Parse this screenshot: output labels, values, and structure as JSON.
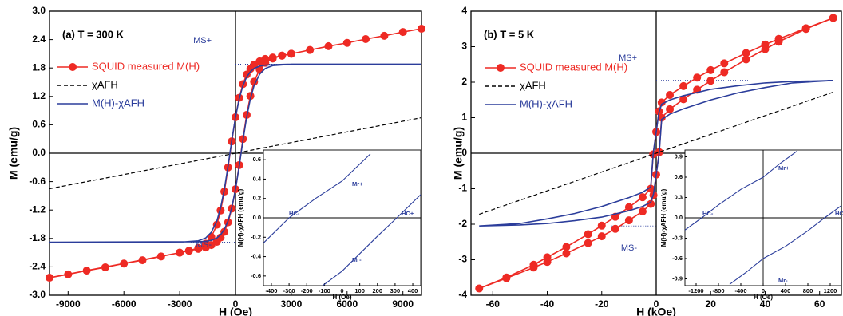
{
  "chart_data": [
    {
      "type": "line",
      "title": "(a) T = 300 K",
      "xlabel": "H (Oe)",
      "ylabel": "M (emu/g)",
      "xlim": [
        -10000,
        10000
      ],
      "ylim": [
        -3,
        3
      ],
      "xticks": [
        -9000,
        -6000,
        -3000,
        0,
        3000,
        6000,
        9000
      ],
      "yticks": [
        {
          "value": -3,
          "label": "-3.0"
        },
        -2.4,
        -1.8,
        -1.2,
        -0.6,
        {
          "value": 0,
          "label": "0.0"
        },
        0.6,
        1.2,
        1.8,
        2.4,
        {
          "value": 3,
          "label": "3.0"
        }
      ],
      "series": [
        {
          "name": "SQUID measured M(H)",
          "color": "#ee2a24",
          "marker": "circle",
          "x": [
            10000,
            9000,
            8000,
            7000,
            6000,
            5000,
            4000,
            3000,
            2500,
            2000,
            1600,
            1300,
            1000,
            800,
            600,
            400,
            200,
            0,
            -200,
            -400,
            -600,
            -800,
            -1000,
            -1300,
            -1600,
            -2000,
            -2500,
            -3000,
            -4000,
            -5000,
            -6000,
            -7000,
            -8000,
            -9000,
            -10000,
            -3000,
            -2500,
            -2000,
            -1600,
            -1300,
            -1000,
            -800,
            -600,
            -400,
            -200,
            0,
            200,
            400,
            600,
            800,
            1000,
            1300,
            1600,
            2000,
            2500,
            3000
          ],
          "values": [
            2.63,
            2.56,
            2.48,
            2.41,
            2.33,
            2.26,
            2.18,
            2.1,
            2.06,
            2.02,
            1.99,
            1.94,
            1.87,
            1.78,
            1.66,
            1.46,
            1.17,
            0.76,
            0.25,
            -0.3,
            -0.81,
            -1.21,
            -1.51,
            -1.77,
            -1.91,
            -2.0,
            -2.06,
            -2.1,
            -2.18,
            -2.26,
            -2.33,
            -2.41,
            -2.48,
            -2.56,
            -2.63,
            -2.1,
            -2.06,
            -2.02,
            -1.99,
            -1.94,
            -1.87,
            -1.78,
            -1.66,
            -1.46,
            -1.17,
            -0.76,
            -0.25,
            0.3,
            0.81,
            1.21,
            1.51,
            1.77,
            1.91,
            2.0,
            2.06,
            2.1
          ]
        },
        {
          "name": "χAFH",
          "color": "#000000",
          "dash": true,
          "x": [
            -10000,
            10000
          ],
          "values": [
            -0.75,
            0.75
          ]
        },
        {
          "name": "M(H)-χAFH",
          "color": "#2b3d9b",
          "x": [
            10000,
            3000,
            2000,
            1600,
            1300,
            1000,
            800,
            600,
            400,
            200,
            0,
            -200,
            -400,
            -600,
            -800,
            -1000,
            -1300,
            -1600,
            -2000,
            -3000,
            -10000,
            -2000,
            -1600,
            -1300,
            -1000,
            -800,
            -600,
            -400,
            -200,
            0,
            200,
            400,
            600,
            800,
            1000,
            1300,
            1600,
            2000,
            3000,
            10000
          ],
          "values": [
            1.88,
            1.88,
            1.87,
            1.86,
            1.84,
            1.79,
            1.72,
            1.61,
            1.43,
            1.15,
            0.76,
            0.27,
            -0.27,
            -0.76,
            -1.15,
            -1.43,
            -1.67,
            -1.79,
            -1.85,
            -1.88,
            -1.88,
            -1.87,
            -1.86,
            -1.84,
            -1.79,
            -1.72,
            -1.61,
            -1.43,
            -1.15,
            -0.76,
            -0.27,
            0.27,
            0.76,
            1.15,
            1.43,
            1.67,
            1.79,
            1.85,
            1.88,
            1.88
          ]
        }
      ],
      "annotations": [
        "MS+",
        "MS-"
      ]
    },
    {
      "type": "line",
      "xlabel": "H (Oe)",
      "ylabel": "M(H)-χAFH (emu/g)",
      "xlim": [
        -445,
        445
      ],
      "ylim": [
        -0.7,
        0.7
      ],
      "xticks": [
        -400,
        -300,
        -200,
        -100,
        0,
        100,
        200,
        300,
        400
      ],
      "yticks": [
        -0.6,
        -0.4,
        -0.2,
        {
          "value": 0,
          "label": "0.0"
        },
        0.2,
        0.4,
        0.6
      ],
      "series": [
        {
          "color": "#2b3d9b",
          "x": [
            -445,
            -300,
            -150,
            0,
            80,
            160
          ],
          "values": [
            -0.26,
            0,
            0.2,
            0.38,
            0.52,
            0.66
          ]
        },
        {
          "color": "#2b3d9b",
          "x": [
            -110,
            0,
            100,
            200,
            310,
            445
          ],
          "values": [
            -0.7,
            -0.55,
            -0.37,
            -0.19,
            0,
            0.24
          ]
        }
      ],
      "annotations": [
        "Mr+",
        "Mr-",
        "HC-",
        "HC+"
      ]
    },
    {
      "type": "line",
      "title": "(b) T = 5 K",
      "xlabel": "H (kOe)",
      "ylabel": "M (emu/g)",
      "xlim": [
        -68,
        68
      ],
      "ylim": [
        -4,
        4
      ],
      "xticks": [
        -60,
        -40,
        -20,
        0,
        20,
        40,
        60
      ],
      "yticks": [
        -4,
        -3,
        -2,
        -1,
        0,
        1,
        2,
        3,
        4
      ],
      "series": [
        {
          "name": "SQUID measured M(H)",
          "color": "#ee2a24",
          "marker": "circle",
          "x": [
            65,
            55,
            45,
            40,
            33,
            25,
            20,
            15,
            10,
            5,
            2,
            1,
            0,
            -1.1,
            -2,
            -5,
            -10,
            -15,
            -20,
            -25,
            -33,
            -40,
            -45,
            -55,
            -65,
            -55,
            -45,
            -40,
            -33,
            -25,
            -20,
            -15,
            -10,
            -5,
            -2,
            -1,
            0,
            1.1,
            2,
            5,
            10,
            15,
            20,
            25,
            33,
            40,
            45,
            55,
            65
          ],
          "values": [
            3.81,
            3.52,
            3.22,
            3.06,
            2.82,
            2.53,
            2.34,
            2.13,
            1.89,
            1.64,
            1.43,
            1.18,
            0.6,
            -0.03,
            -1.0,
            -1.24,
            -1.52,
            -1.79,
            -2.04,
            -2.28,
            -2.64,
            -2.93,
            -3.14,
            -3.5,
            -3.81,
            -3.52,
            -3.22,
            -3.06,
            -2.82,
            -2.53,
            -2.34,
            -2.13,
            -1.89,
            -1.64,
            -1.43,
            -1.18,
            -0.6,
            0.03,
            1.0,
            1.24,
            1.52,
            1.79,
            2.04,
            2.28,
            2.64,
            2.93,
            3.14,
            3.5,
            3.81
          ]
        },
        {
          "name": "χAFH",
          "color": "#000000",
          "dash": true,
          "x": [
            -65,
            65
          ],
          "values": [
            -1.72,
            1.72
          ]
        },
        {
          "name": "M(H)-χAFH",
          "color": "#2b3d9b",
          "x": [
            65,
            50,
            40,
            30,
            20,
            10,
            5,
            2,
            1,
            0,
            -1.1,
            -2,
            -5,
            -10,
            -20,
            -30,
            -40,
            -50,
            -65,
            -50,
            -40,
            -30,
            -20,
            -10,
            -5,
            -2,
            -1,
            0,
            1.1,
            2,
            5,
            10,
            20,
            30,
            40,
            50,
            65
          ],
          "values": [
            2.05,
            2.02,
            1.98,
            1.9,
            1.8,
            1.62,
            1.5,
            1.38,
            1.15,
            0.6,
            0,
            -0.95,
            -1.1,
            -1.25,
            -1.5,
            -1.7,
            -1.85,
            -1.98,
            -2.05,
            -2.02,
            -1.98,
            -1.9,
            -1.8,
            -1.62,
            -1.5,
            -1.38,
            -1.15,
            -0.6,
            0,
            0.95,
            1.1,
            1.25,
            1.5,
            1.7,
            1.85,
            1.98,
            2.05
          ]
        }
      ],
      "annotations": [
        "MS+",
        "MS-"
      ]
    },
    {
      "type": "line",
      "xlabel": "H (Oe)",
      "ylabel": "M(H)-χAFH (emu/g)",
      "xlim": [
        -1400,
        1400
      ],
      "ylim": [
        -1,
        1
      ],
      "xticks": [
        -1200,
        -800,
        -400,
        0,
        400,
        800,
        1200
      ],
      "yticks": [
        -0.9,
        -0.6,
        -0.3,
        {
          "value": 0,
          "label": "0.0"
        },
        0.3,
        0.6,
        0.9
      ],
      "series": [
        {
          "color": "#2b3d9b",
          "x": [
            -1400,
            -1100,
            -800,
            -400,
            0,
            300,
            600
          ],
          "values": [
            -0.18,
            0,
            0.19,
            0.42,
            0.6,
            0.8,
            0.98
          ]
        },
        {
          "color": "#2b3d9b",
          "x": [
            -600,
            -300,
            0,
            400,
            800,
            1100,
            1400
          ],
          "values": [
            -0.98,
            -0.8,
            -0.6,
            -0.42,
            -0.19,
            0,
            0.18
          ]
        }
      ],
      "annotations": [
        "Mr+",
        "Mr-",
        "HC-",
        "HC+"
      ]
    }
  ]
}
